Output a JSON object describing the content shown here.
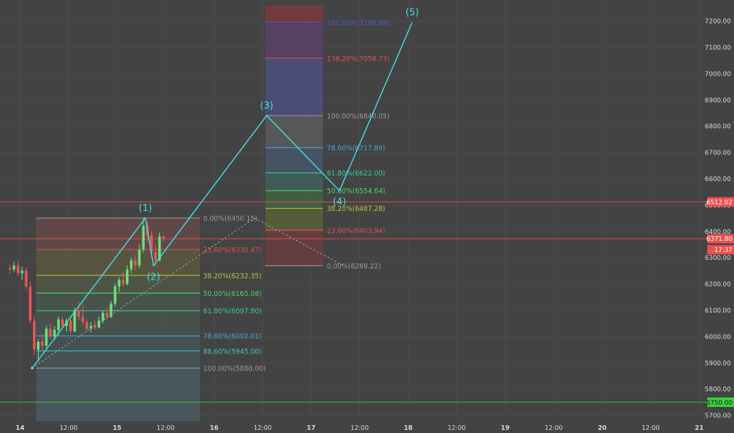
{
  "chart_data": {
    "type": "candlestick",
    "y_axis": {
      "position": "right",
      "ticks": [
        5700,
        5800,
        5900,
        6000,
        6100,
        6200,
        6300,
        6400,
        6500,
        6600,
        6700,
        6800,
        6900,
        7000,
        7100,
        7200
      ],
      "tick_labels": [
        "5700.00",
        "5800.00",
        "5900.00",
        "6000.00",
        "6100.00",
        "6200.00",
        "6300.00",
        "6400.00",
        "6500.00",
        "6600.00",
        "6700.00",
        "6800.00",
        "6900.00",
        "7000.00",
        "7100.00",
        "7200.00"
      ]
    },
    "x_axis": {
      "labels": [
        {
          "t": 0,
          "text": "14"
        },
        {
          "t": 12,
          "text": "12:00"
        },
        {
          "t": 24,
          "text": "15"
        },
        {
          "t": 36,
          "text": "12:00"
        },
        {
          "t": 48,
          "text": "16"
        },
        {
          "t": 60,
          "text": "12:00"
        },
        {
          "t": 72,
          "text": "17"
        },
        {
          "t": 84,
          "text": "12:00"
        },
        {
          "t": 96,
          "text": "18"
        },
        {
          "t": 108,
          "text": "12:00"
        },
        {
          "t": 120,
          "text": "19"
        },
        {
          "t": 132,
          "text": "12:00"
        },
        {
          "t": 144,
          "text": "20"
        },
        {
          "t": 156,
          "text": "12:00"
        },
        {
          "t": 168,
          "text": "21"
        }
      ]
    },
    "price_tags": [
      {
        "value": 6512.02,
        "label": "6512.02",
        "color": "#e8514f",
        "line": true
      },
      {
        "value": 6371.8,
        "label": "6371.80",
        "color": "#e8514f",
        "line": true
      },
      {
        "value": 6330.0,
        "label": "17:37",
        "color": "#e8514f",
        "line": false
      },
      {
        "value": 5750.0,
        "label": "5750.00",
        "color": "#3ecf3e",
        "line": true
      }
    ],
    "candles": [
      {
        "t": -2.5,
        "o": 6260,
        "h": 6275,
        "l": 6240,
        "c": 6255
      },
      {
        "t": -1.5,
        "o": 6255,
        "h": 6285,
        "l": 6245,
        "c": 6270
      },
      {
        "t": -0.5,
        "o": 6270,
        "h": 6290,
        "l": 6230,
        "c": 6240
      },
      {
        "t": 0.5,
        "o": 6240,
        "h": 6265,
        "l": 6215,
        "c": 6250
      },
      {
        "t": 1.5,
        "o": 6250,
        "h": 6262,
        "l": 6180,
        "c": 6190
      },
      {
        "t": 2.5,
        "o": 6190,
        "h": 6210,
        "l": 6050,
        "c": 6060
      },
      {
        "t": 3.5,
        "o": 6060,
        "h": 6080,
        "l": 5930,
        "c": 5950
      },
      {
        "t": 4.5,
        "o": 5950,
        "h": 5990,
        "l": 5905,
        "c": 5980
      },
      {
        "t": 5.5,
        "o": 5980,
        "h": 6010,
        "l": 5950,
        "c": 5965
      },
      {
        "t": 6.5,
        "o": 5965,
        "h": 6040,
        "l": 5955,
        "c": 6030
      },
      {
        "t": 7.5,
        "o": 6030,
        "h": 6050,
        "l": 5990,
        "c": 6000
      },
      {
        "t": 8.5,
        "o": 6000,
        "h": 6040,
        "l": 5985,
        "c": 6025
      },
      {
        "t": 9.5,
        "o": 6025,
        "h": 6075,
        "l": 6005,
        "c": 6065
      },
      {
        "t": 10.5,
        "o": 6065,
        "h": 6075,
        "l": 6030,
        "c": 6040
      },
      {
        "t": 11.5,
        "o": 6040,
        "h": 6070,
        "l": 6020,
        "c": 6060
      },
      {
        "t": 12.5,
        "o": 6060,
        "h": 6080,
        "l": 6010,
        "c": 6020
      },
      {
        "t": 13.5,
        "o": 6020,
        "h": 6110,
        "l": 6015,
        "c": 6100
      },
      {
        "t": 14.5,
        "o": 6100,
        "h": 6130,
        "l": 6060,
        "c": 6075
      },
      {
        "t": 15.5,
        "o": 6075,
        "h": 6120,
        "l": 6045,
        "c": 6055
      },
      {
        "t": 16.5,
        "o": 6055,
        "h": 6065,
        "l": 6020,
        "c": 6030
      },
      {
        "t": 17.5,
        "o": 6030,
        "h": 6055,
        "l": 6015,
        "c": 6040
      },
      {
        "t": 18.5,
        "o": 6040,
        "h": 6060,
        "l": 6025,
        "c": 6035
      },
      {
        "t": 19.5,
        "o": 6035,
        "h": 6075,
        "l": 6030,
        "c": 6060
      },
      {
        "t": 20.5,
        "o": 6060,
        "h": 6100,
        "l": 6050,
        "c": 6090
      },
      {
        "t": 21.5,
        "o": 6090,
        "h": 6110,
        "l": 6065,
        "c": 6075
      },
      {
        "t": 22.5,
        "o": 6075,
        "h": 6135,
        "l": 6070,
        "c": 6125
      },
      {
        "t": 23.5,
        "o": 6125,
        "h": 6200,
        "l": 6115,
        "c": 6190
      },
      {
        "t": 24.5,
        "o": 6190,
        "h": 6225,
        "l": 6170,
        "c": 6215
      },
      {
        "t": 25.5,
        "o": 6215,
        "h": 6245,
        "l": 6190,
        "c": 6200
      },
      {
        "t": 26.5,
        "o": 6200,
        "h": 6270,
        "l": 6195,
        "c": 6255
      },
      {
        "t": 27.5,
        "o": 6255,
        "h": 6300,
        "l": 6240,
        "c": 6290
      },
      {
        "t": 28.5,
        "o": 6290,
        "h": 6310,
        "l": 6250,
        "c": 6270
      },
      {
        "t": 29.5,
        "o": 6270,
        "h": 6350,
        "l": 6260,
        "c": 6330
      },
      {
        "t": 30.5,
        "o": 6330,
        "h": 6450,
        "l": 6320,
        "c": 6420
      },
      {
        "t": 31.5,
        "o": 6420,
        "h": 6440,
        "l": 6360,
        "c": 6385
      },
      {
        "t": 32.5,
        "o": 6385,
        "h": 6400,
        "l": 6300,
        "c": 6320
      },
      {
        "t": 33.5,
        "o": 6320,
        "h": 6350,
        "l": 6270,
        "c": 6290
      },
      {
        "t": 34.5,
        "o": 6290,
        "h": 6395,
        "l": 6285,
        "c": 6380
      },
      {
        "t": 35.5,
        "o": 6380,
        "h": 6385,
        "l": 6360,
        "c": 6372
      }
    ],
    "waves": [
      {
        "label": "(1)",
        "t": 31,
        "price": 6450.15
      },
      {
        "label": "(2)",
        "t": 33,
        "price": 6269.22
      },
      {
        "label": "(3)",
        "t": 61,
        "price": 6840.05
      },
      {
        "label": "(4)",
        "t": 79,
        "price": 6554.64
      },
      {
        "label": "(5)",
        "t": 97,
        "price": 7195.0
      }
    ],
    "wave_start": {
      "t": 3,
      "price": 5880.0
    },
    "fib_retracement": {
      "levels": [
        {
          "label": "0.00%(6450.15)",
          "price": 6450.15,
          "color": "#9a9a9a"
        },
        {
          "label": "23.60%(6330.47)",
          "price": 6330.47,
          "color": "#e05050"
        },
        {
          "label": "38.20%(6232.35)",
          "price": 6232.35,
          "color": "#b8c83a"
        },
        {
          "label": "50.00%(6165.08)",
          "price": 6165.08,
          "color": "#4cd46a"
        },
        {
          "label": "61.80%(6097.80)",
          "price": 6097.8,
          "color": "#38c99a"
        },
        {
          "label": "78.60%(6002.01)",
          "price": 6002.01,
          "color": "#4aa3d8"
        },
        {
          "label": "88.60%(5945.00)",
          "price": 5945.0,
          "color": "#38c9c9"
        },
        {
          "label": "100.00%(5880.00)",
          "price": 5880.0,
          "color": "#9a9a9a"
        }
      ]
    },
    "fib_extension": {
      "levels": [
        {
          "label": "161.80%(7194.69)",
          "price": 7194.69,
          "color": "#4a55c8"
        },
        {
          "label": "138.20%(7058.73)",
          "price": 7058.73,
          "color": "#e05050"
        },
        {
          "label": "100.00%(6840.05)",
          "price": 6840.05,
          "color": "#9a9a9a"
        },
        {
          "label": "78.60%(6717.89)",
          "price": 6717.89,
          "color": "#4aa3d8"
        },
        {
          "label": "61.80%(6622.00)",
          "price": 6622.0,
          "color": "#38c99a"
        },
        {
          "label": "50.00%(6554.64)",
          "price": 6554.64,
          "color": "#4cd46a"
        },
        {
          "label": "38.20%(6487.28)",
          "price": 6487.28,
          "color": "#b8c83a"
        },
        {
          "label": "23.60%(6403.94)",
          "price": 6403.94,
          "color": "#e05050"
        },
        {
          "label": "0.00%(6269.22)",
          "price": 6269.22,
          "color": "#9a9a9a"
        }
      ],
      "top_band_price": 7260
    },
    "colors": {
      "background": "#434343",
      "wave_line": "#3fe0e8",
      "bull_candle": "#6fe07a",
      "bear_candle": "#e8575a",
      "grid": "#4b4b4b",
      "axis_text": "#d9d9d9"
    }
  }
}
